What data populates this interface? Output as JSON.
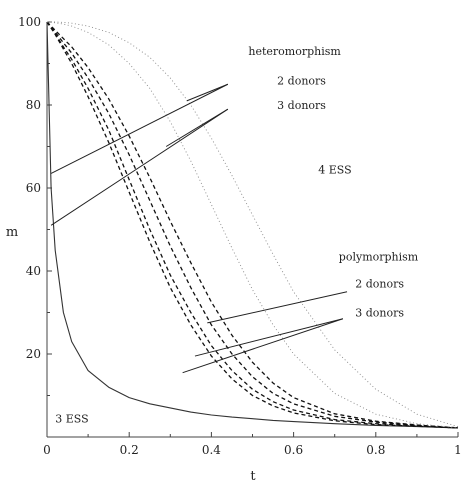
{
  "chart_data": {
    "type": "line",
    "title": "",
    "xlabel": "t",
    "ylabel": "m",
    "xlim": [
      0,
      1
    ],
    "ylim": [
      0,
      100
    ],
    "x_ticks": [
      "0",
      "0.2",
      "0.4",
      "0.6",
      "0.8",
      "1"
    ],
    "y_ticks": [
      "20",
      "40",
      "60",
      "80",
      "100"
    ],
    "grid": false,
    "legend": "none",
    "x": [
      0,
      0.01,
      0.02,
      0.04,
      0.06,
      0.1,
      0.15,
      0.2,
      0.25,
      0.3,
      0.35,
      0.4,
      0.45,
      0.5,
      0.55,
      0.6,
      0.7,
      0.8,
      0.9,
      1.0
    ],
    "series": [
      {
        "style": "solid-thin",
        "values": [
          100,
          60,
          45,
          30,
          23,
          16,
          12,
          9.5,
          8,
          7,
          6,
          5.3,
          4.8,
          4.4,
          4,
          3.7,
          3.2,
          2.8,
          2.5,
          2.2
        ]
      },
      {
        "style": "dashed",
        "values": [
          100,
          98.5,
          97,
          93.5,
          90,
          82,
          71,
          59,
          47,
          36,
          27,
          19.5,
          14,
          10,
          7.5,
          5.8,
          3.9,
          3,
          2.6,
          2.2
        ]
      },
      {
        "style": "dashed",
        "values": [
          100,
          98.6,
          97.2,
          94,
          91,
          84,
          74,
          62,
          50,
          39,
          30,
          22,
          16,
          11.5,
          8.5,
          6.5,
          4.2,
          3.2,
          2.7,
          2.2
        ]
      },
      {
        "style": "dashed",
        "values": [
          100,
          98.8,
          97.6,
          95,
          92.5,
          86.5,
          78,
          68,
          57,
          46,
          36,
          27,
          20,
          14.5,
          10.5,
          8,
          5,
          3.6,
          2.8,
          2.2
        ]
      },
      {
        "style": "dashed",
        "values": [
          100,
          99,
          98,
          96,
          94,
          89,
          81.5,
          72.5,
          62.5,
          52,
          42,
          32.5,
          24.5,
          18,
          13,
          9.5,
          5.6,
          3.8,
          2.9,
          2.2
        ]
      },
      {
        "style": "dotted",
        "values": [
          100,
          100,
          99.8,
          99.5,
          99,
          97.5,
          94.5,
          90,
          84,
          76,
          66.5,
          56,
          45.5,
          35.5,
          27,
          20,
          10.5,
          5.5,
          3.2,
          2.2
        ]
      },
      {
        "style": "dotted",
        "values": [
          100,
          100,
          100,
          99.9,
          99.7,
          99,
          97.5,
          95,
          91.5,
          86.5,
          80,
          72,
          63,
          53.5,
          44,
          35,
          21,
          11.5,
          5.5,
          2.5
        ]
      }
    ],
    "annotations": [
      {
        "text": "heteromorphism",
        "x": 0.49,
        "y": 92
      },
      {
        "text": "2 donors",
        "x": 0.56,
        "y": 85
      },
      {
        "text": "3 donors",
        "x": 0.56,
        "y": 79
      },
      {
        "text": "4 ESS",
        "x": 0.66,
        "y": 63.5
      },
      {
        "text": "polymorphism",
        "x": 0.71,
        "y": 42.5
      },
      {
        "text": "2 donors",
        "x": 0.75,
        "y": 36
      },
      {
        "text": "3 donors",
        "x": 0.75,
        "y": 29
      },
      {
        "text": "3 ESS",
        "x": 0.02,
        "y": 3.5
      }
    ],
    "pointer_lines": [
      {
        "x1": 0.01,
        "y1": 63.5,
        "x2": 0.44,
        "y2": 85
      },
      {
        "x1": 0.34,
        "y1": 81,
        "x2": 0.44,
        "y2": 85
      },
      {
        "x1": 0.01,
        "y1": 51,
        "x2": 0.44,
        "y2": 79
      },
      {
        "x1": 0.29,
        "y1": 70,
        "x2": 0.44,
        "y2": 79
      },
      {
        "x1": 0.39,
        "y1": 27.5,
        "x2": 0.73,
        "y2": 35
      },
      {
        "x1": 0.36,
        "y1": 19.5,
        "x2": 0.72,
        "y2": 28.5
      },
      {
        "x1": 0.33,
        "y1": 15.5,
        "x2": 0.72,
        "y2": 28.5
      }
    ]
  }
}
